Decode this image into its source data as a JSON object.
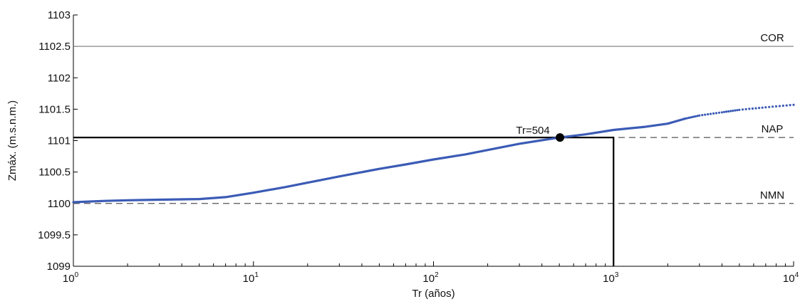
{
  "chart_data": {
    "type": "scatter",
    "xlabel": "Tr (años)",
    "ylabel": "Zmáx. (m.s.n.m.)",
    "xscale": "log",
    "xlim": [
      1,
      10000
    ],
    "ylim": [
      1099,
      1103
    ],
    "x_ticks": [
      {
        "base": "10",
        "exp": "0"
      },
      {
        "base": "10",
        "exp": "1"
      },
      {
        "base": "10",
        "exp": "2"
      },
      {
        "base": "10",
        "exp": "3"
      },
      {
        "base": "10",
        "exp": "4"
      }
    ],
    "y_ticks": [
      "1099",
      "1099.5",
      "1100",
      "1100.5",
      "1101",
      "1101.5",
      "1102",
      "1102.5",
      "1103"
    ],
    "grid": false,
    "series": [
      {
        "color": "#3b5bb5",
        "points": [
          [
            1,
            1100.02
          ],
          [
            1.5,
            1100.04
          ],
          [
            2,
            1100.05
          ],
          [
            3,
            1100.06
          ],
          [
            5,
            1100.07
          ],
          [
            7,
            1100.1
          ],
          [
            10,
            1100.17
          ],
          [
            15,
            1100.26
          ],
          [
            20,
            1100.33
          ],
          [
            30,
            1100.43
          ],
          [
            50,
            1100.55
          ],
          [
            70,
            1100.62
          ],
          [
            100,
            1100.7
          ],
          [
            150,
            1100.78
          ],
          [
            200,
            1100.85
          ],
          [
            300,
            1100.95
          ],
          [
            504,
            1101.05
          ],
          [
            700,
            1101.1
          ],
          [
            1000,
            1101.17
          ],
          [
            1500,
            1101.22
          ],
          [
            2000,
            1101.27
          ],
          [
            2500,
            1101.35
          ],
          [
            3000,
            1101.4
          ],
          [
            4000,
            1101.45
          ],
          [
            5000,
            1101.49
          ],
          [
            7000,
            1101.53
          ],
          [
            10000,
            1101.57
          ]
        ]
      }
    ],
    "reference_lines": [
      {
        "label": "COR",
        "y": 1102.5,
        "style": "solid",
        "color": "#888888"
      },
      {
        "label": "NAP",
        "y": 1101.05,
        "style": "dashed",
        "color": "#555555"
      },
      {
        "label": "NMN",
        "y": 1100.0,
        "style": "dashed",
        "color": "#555555"
      }
    ],
    "marker": {
      "label": "Tr=504",
      "x": 504,
      "y": 1101.05
    },
    "design_box": {
      "x": 1000,
      "y": 1101.05
    }
  }
}
